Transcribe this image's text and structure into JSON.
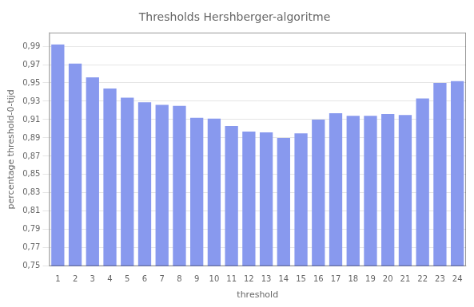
{
  "chart_data": {
    "type": "bar",
    "title": "Thresholds Hershberger-algoritme",
    "xlabel": "threshold",
    "ylabel": "percentage threshold-0-tijd",
    "categories": [
      1,
      2,
      3,
      4,
      5,
      6,
      7,
      8,
      9,
      10,
      11,
      12,
      13,
      14,
      15,
      16,
      17,
      18,
      19,
      20,
      21,
      22,
      23,
      24
    ],
    "values": [
      0.992,
      0.971,
      0.956,
      0.944,
      0.934,
      0.929,
      0.926,
      0.925,
      0.912,
      0.911,
      0.903,
      0.897,
      0.896,
      0.89,
      0.895,
      0.91,
      0.917,
      0.914,
      0.914,
      0.916,
      0.915,
      0.933,
      0.95,
      0.952
    ],
    "color": "#8899ee",
    "ylim": [
      0.75,
      1.005
    ],
    "yticks": [
      {
        "value": 0.75,
        "label": "0,75"
      },
      {
        "value": 0.77,
        "label": "0,77"
      },
      {
        "value": 0.79,
        "label": "0,79"
      },
      {
        "value": 0.81,
        "label": "0,81"
      },
      {
        "value": 0.83,
        "label": "0,83"
      },
      {
        "value": 0.85,
        "label": "0,85"
      },
      {
        "value": 0.87,
        "label": "0,87"
      },
      {
        "value": 0.89,
        "label": "0,89"
      },
      {
        "value": 0.91,
        "label": "0,91"
      },
      {
        "value": 0.93,
        "label": "0,93"
      },
      {
        "value": 0.95,
        "label": "0,95"
      },
      {
        "value": 0.97,
        "label": "0,97"
      },
      {
        "value": 0.99,
        "label": "0,99"
      }
    ],
    "grid": true
  }
}
